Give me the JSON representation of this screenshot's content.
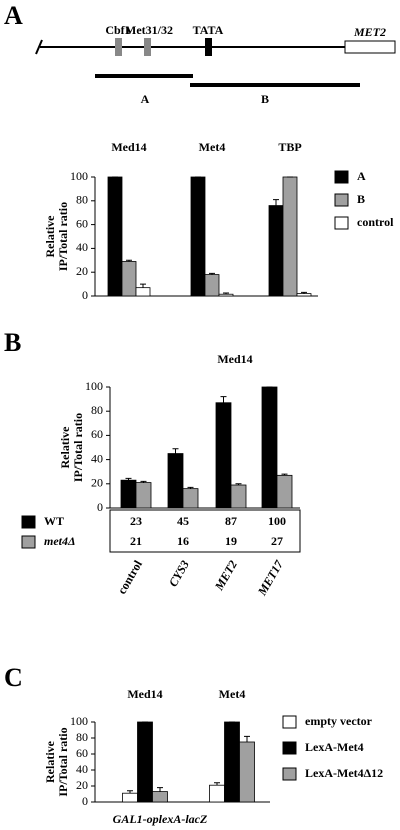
{
  "panel_labels": [
    "A",
    "B",
    "C"
  ],
  "diagram": {
    "gene": "MET2",
    "sites": [
      "Cbf1",
      "Met31/32",
      "TATA"
    ],
    "fragments": [
      "A",
      "B"
    ]
  },
  "chart_data": [
    {
      "type": "bar",
      "categories": [
        "Med14",
        "Met4",
        "TBP"
      ],
      "y_label": [
        "Relative",
        "IP/Total ratio"
      ],
      "ylim": [
        0,
        100
      ],
      "yticks": [
        0,
        20,
        40,
        60,
        80,
        100
      ],
      "series": [
        {
          "name": "A",
          "color": "#000000",
          "values": [
            100,
            100,
            76
          ],
          "errors": [
            0,
            0,
            5
          ]
        },
        {
          "name": "B",
          "color": "#a0a0a0",
          "values": [
            29,
            18,
            100
          ],
          "errors": [
            1,
            1,
            0
          ]
        },
        {
          "name": "control",
          "color": "#ffffff",
          "values": [
            7,
            1.5,
            2
          ],
          "errors": [
            3,
            1,
            1
          ]
        }
      ]
    },
    {
      "type": "bar",
      "title": "Med14",
      "categories": [
        "control",
        "CYS3",
        "MET2",
        "MET17"
      ],
      "y_label": [
        "Relative",
        "IP/Total ratio"
      ],
      "ylim": [
        0,
        100
      ],
      "yticks": [
        0,
        20,
        40,
        60,
        80,
        100
      ],
      "series": [
        {
          "name": "WT",
          "color": "#000000",
          "values": [
            23,
            45,
            87,
            100
          ],
          "errors": [
            1.5,
            4,
            5,
            0
          ]
        },
        {
          "name": "met4Δ",
          "color": "#a0a0a0",
          "values": [
            21,
            16,
            19,
            27
          ],
          "errors": [
            1,
            1,
            1,
            1
          ]
        }
      ]
    },
    {
      "type": "bar",
      "categories": [
        "Med14",
        "Met4"
      ],
      "y_label": [
        "Relative",
        "IP/Total ratio"
      ],
      "x_label": "GAL1-oplexA-lacZ",
      "ylim": [
        0,
        100
      ],
      "yticks": [
        0,
        20,
        40,
        60,
        80,
        100
      ],
      "series": [
        {
          "name": "empty vector",
          "color": "#ffffff",
          "values": [
            11,
            21
          ],
          "errors": [
            3,
            3
          ]
        },
        {
          "name": "LexA-Met4",
          "color": "#000000",
          "values": [
            100,
            100
          ],
          "errors": [
            0,
            0
          ]
        },
        {
          "name": "LexA-Met4Δ12",
          "color": "#a0a0a0",
          "values": [
            13,
            75
          ],
          "errors": [
            5,
            7
          ]
        }
      ]
    }
  ]
}
